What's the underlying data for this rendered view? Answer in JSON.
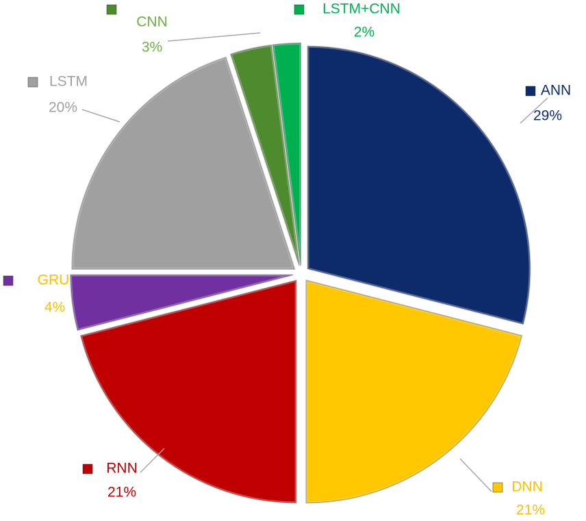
{
  "chart_data": {
    "type": "pie",
    "categories": [
      "ANN",
      "DNN",
      "RNN",
      "GRU",
      "LSTM",
      "CNN",
      "LSTM+CNN"
    ],
    "values": [
      29,
      21,
      21,
      4,
      20,
      3,
      2
    ],
    "value_labels": [
      "29%",
      "21%",
      "21%",
      "4%",
      "20%",
      "3%",
      "2%"
    ],
    "colors": [
      "#0d2a6b",
      "#ffc800",
      "#c00000",
      "#7030a0",
      "#a0a0a0",
      "#4e8a2e",
      "#00b050"
    ],
    "label_colors": [
      "#0d2a6b",
      "#ffc000",
      "#c00000",
      "#ffc000",
      "#a0a0a0",
      "#70ad47",
      "#00b050"
    ]
  }
}
